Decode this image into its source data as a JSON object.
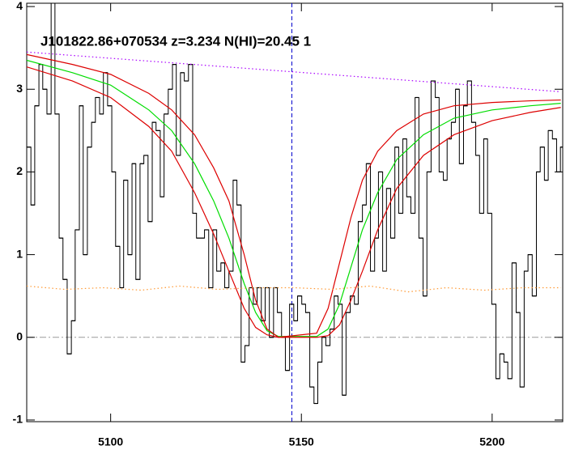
{
  "chart_data": {
    "type": "spectrum",
    "title": "J101822.86+070534 z=3.234 N(HI)=20.45 1",
    "xlim": [
      5078,
      5218.5
    ],
    "ylim": [
      -1.02,
      4.04
    ],
    "xticks": [
      5100,
      5150,
      5200
    ],
    "yticks": [
      -1,
      0,
      1,
      2,
      3,
      4
    ],
    "zero_line": 0,
    "marker_x": 5147.5,
    "series": [
      {
        "style": "step",
        "color": "#000000",
        "x": [
          5078.0,
          5079.1,
          5080.1,
          5081.2,
          5082.2,
          5083.3,
          5084.4,
          5085.4,
          5086.5,
          5087.5,
          5088.6,
          5089.7,
          5090.7,
          5091.8,
          5092.8,
          5093.9,
          5095.0,
          5096.0,
          5097.1,
          5098.1,
          5099.2,
          5100.3,
          5101.3,
          5102.4,
          5103.4,
          5104.5,
          5105.6,
          5106.6,
          5107.7,
          5108.7,
          5109.8,
          5110.9,
          5111.9,
          5113.0,
          5114.0,
          5115.1,
          5116.2,
          5117.2,
          5118.3,
          5119.3,
          5120.4,
          5121.5,
          5122.5,
          5123.6,
          5124.6,
          5125.7,
          5126.8,
          5127.8,
          5128.9,
          5129.9,
          5131.0,
          5132.1,
          5133.1,
          5134.2,
          5135.2,
          5136.3,
          5137.4,
          5138.4,
          5139.5,
          5140.5,
          5141.6,
          5142.7,
          5143.7,
          5144.8,
          5145.8,
          5146.9,
          5148.0,
          5149.0,
          5150.1,
          5151.1,
          5152.2,
          5153.3,
          5154.3,
          5155.4,
          5156.4,
          5157.5,
          5158.6,
          5159.6,
          5160.7,
          5161.7,
          5162.8,
          5163.9,
          5164.9,
          5166.0,
          5167.0,
          5168.1,
          5169.2,
          5170.2,
          5171.3,
          5172.3,
          5173.4,
          5174.5,
          5175.5,
          5176.6,
          5177.6,
          5178.7,
          5179.8,
          5180.8,
          5181.9,
          5182.9,
          5184.0,
          5185.1,
          5186.1,
          5187.2,
          5188.2,
          5189.3,
          5190.4,
          5191.4,
          5192.5,
          5193.5,
          5194.6,
          5195.7,
          5196.7,
          5197.8,
          5198.8,
          5199.9,
          5201.0,
          5202.0,
          5203.1,
          5204.1,
          5205.2,
          5206.3,
          5207.3,
          5208.4,
          5209.4,
          5210.5,
          5211.6,
          5212.6,
          5213.7,
          5214.7,
          5215.8,
          5216.9,
          5217.9
        ],
        "values": [
          2.3,
          1.6,
          2.8,
          3.3,
          3.0,
          2.7,
          4.1,
          2.7,
          1.2,
          0.7,
          -0.2,
          0.2,
          1.3,
          2.8,
          1.0,
          2.3,
          2.6,
          2.9,
          2.7,
          3.2,
          2.8,
          2.0,
          1.1,
          0.6,
          1.9,
          1.0,
          2.1,
          0.7,
          2.1,
          2.2,
          1.4,
          2.6,
          2.5,
          1.7,
          2.7,
          3.0,
          3.3,
          2.2,
          3.2,
          3.1,
          3.3,
          1.5,
          1.2,
          1.2,
          1.3,
          0.6,
          1.3,
          0.8,
          0.9,
          0.6,
          0.8,
          1.9,
          1.6,
          -0.3,
          -0.1,
          0.6,
          0.4,
          0.6,
          0.2,
          0.6,
          0.0,
          0.6,
          0.3,
          0.0,
          -0.4,
          0.4,
          0.2,
          0.5,
          0.4,
          0.3,
          -0.6,
          -0.8,
          -0.3,
          0.0,
          -0.1,
          0.1,
          0.5,
          0.4,
          -0.7,
          0.3,
          0.5,
          0.4,
          1.4,
          1.6,
          2.1,
          0.8,
          1.2,
          2.0,
          0.8,
          1.8,
          1.2,
          2.3,
          1.5,
          2.4,
          1.7,
          1.5,
          2.9,
          1.2,
          0.5,
          2.0,
          3.1,
          2.9,
          2.0,
          1.9,
          2.4,
          2.6,
          3.0,
          2.1,
          2.8,
          3.1,
          2.6,
          2.2,
          1.5,
          2.4,
          1.5,
          0.4,
          -0.5,
          -0.2,
          -0.3,
          -0.5,
          0.9,
          0.3,
          -0.6,
          0.8,
          1.0,
          0.5,
          2.0,
          2.3,
          1.9,
          2.5,
          2.4,
          2.0,
          2.3
        ]
      },
      {
        "style": "line",
        "color": "#00dd00",
        "x": [
          5078,
          5090,
          5100,
          5110,
          5116,
          5122,
          5127,
          5131,
          5135,
          5138,
          5141,
          5144,
          5154,
          5157,
          5160,
          5163,
          5166,
          5170,
          5175,
          5182,
          5190,
          5200,
          5210,
          5218
        ],
        "values": [
          3.35,
          3.2,
          3.05,
          2.75,
          2.5,
          2.1,
          1.65,
          1.2,
          0.65,
          0.3,
          0.08,
          0.01,
          0.01,
          0.1,
          0.4,
          0.85,
          1.3,
          1.75,
          2.15,
          2.45,
          2.65,
          2.75,
          2.8,
          2.83
        ]
      },
      {
        "style": "line",
        "color": "#dd0000",
        "x": [
          5078,
          5090,
          5100,
          5110,
          5116,
          5122,
          5127,
          5131,
          5135,
          5138,
          5141,
          5144,
          5154,
          5157,
          5160,
          5163,
          5166,
          5170,
          5175,
          5182,
          5190,
          5200,
          5210,
          5218
        ],
        "values": [
          3.42,
          3.3,
          3.18,
          2.95,
          2.75,
          2.45,
          2.05,
          1.65,
          1.0,
          0.45,
          0.1,
          0.0,
          0.05,
          0.35,
          0.9,
          1.45,
          1.9,
          2.25,
          2.5,
          2.7,
          2.8,
          2.84,
          2.86,
          2.87
        ]
      },
      {
        "style": "line",
        "color": "#dd0000",
        "x": [
          5078,
          5090,
          5100,
          5110,
          5116,
          5122,
          5127,
          5131,
          5135,
          5138,
          5141,
          5144,
          5154,
          5157,
          5160,
          5163,
          5166,
          5170,
          5175,
          5182,
          5190,
          5200,
          5210,
          5218
        ],
        "values": [
          3.27,
          3.1,
          2.9,
          2.55,
          2.25,
          1.75,
          1.25,
          0.8,
          0.35,
          0.12,
          0.03,
          0.0,
          0.0,
          0.02,
          0.15,
          0.45,
          0.8,
          1.3,
          1.8,
          2.2,
          2.45,
          2.62,
          2.72,
          2.78
        ]
      },
      {
        "style": "dotted",
        "color": "#aa00ff",
        "x": [
          5078,
          5218
        ],
        "values": [
          3.45,
          2.97
        ]
      },
      {
        "style": "dotted",
        "color": "#ff9933",
        "x": [
          5078,
          5088,
          5098,
          5108,
          5118,
          5128,
          5138,
          5148,
          5158,
          5168,
          5178,
          5188,
          5198,
          5208,
          5218
        ],
        "values": [
          0.62,
          0.58,
          0.6,
          0.57,
          0.62,
          0.58,
          0.6,
          0.6,
          0.58,
          0.62,
          0.55,
          0.6,
          0.57,
          0.6,
          0.6
        ]
      }
    ]
  }
}
